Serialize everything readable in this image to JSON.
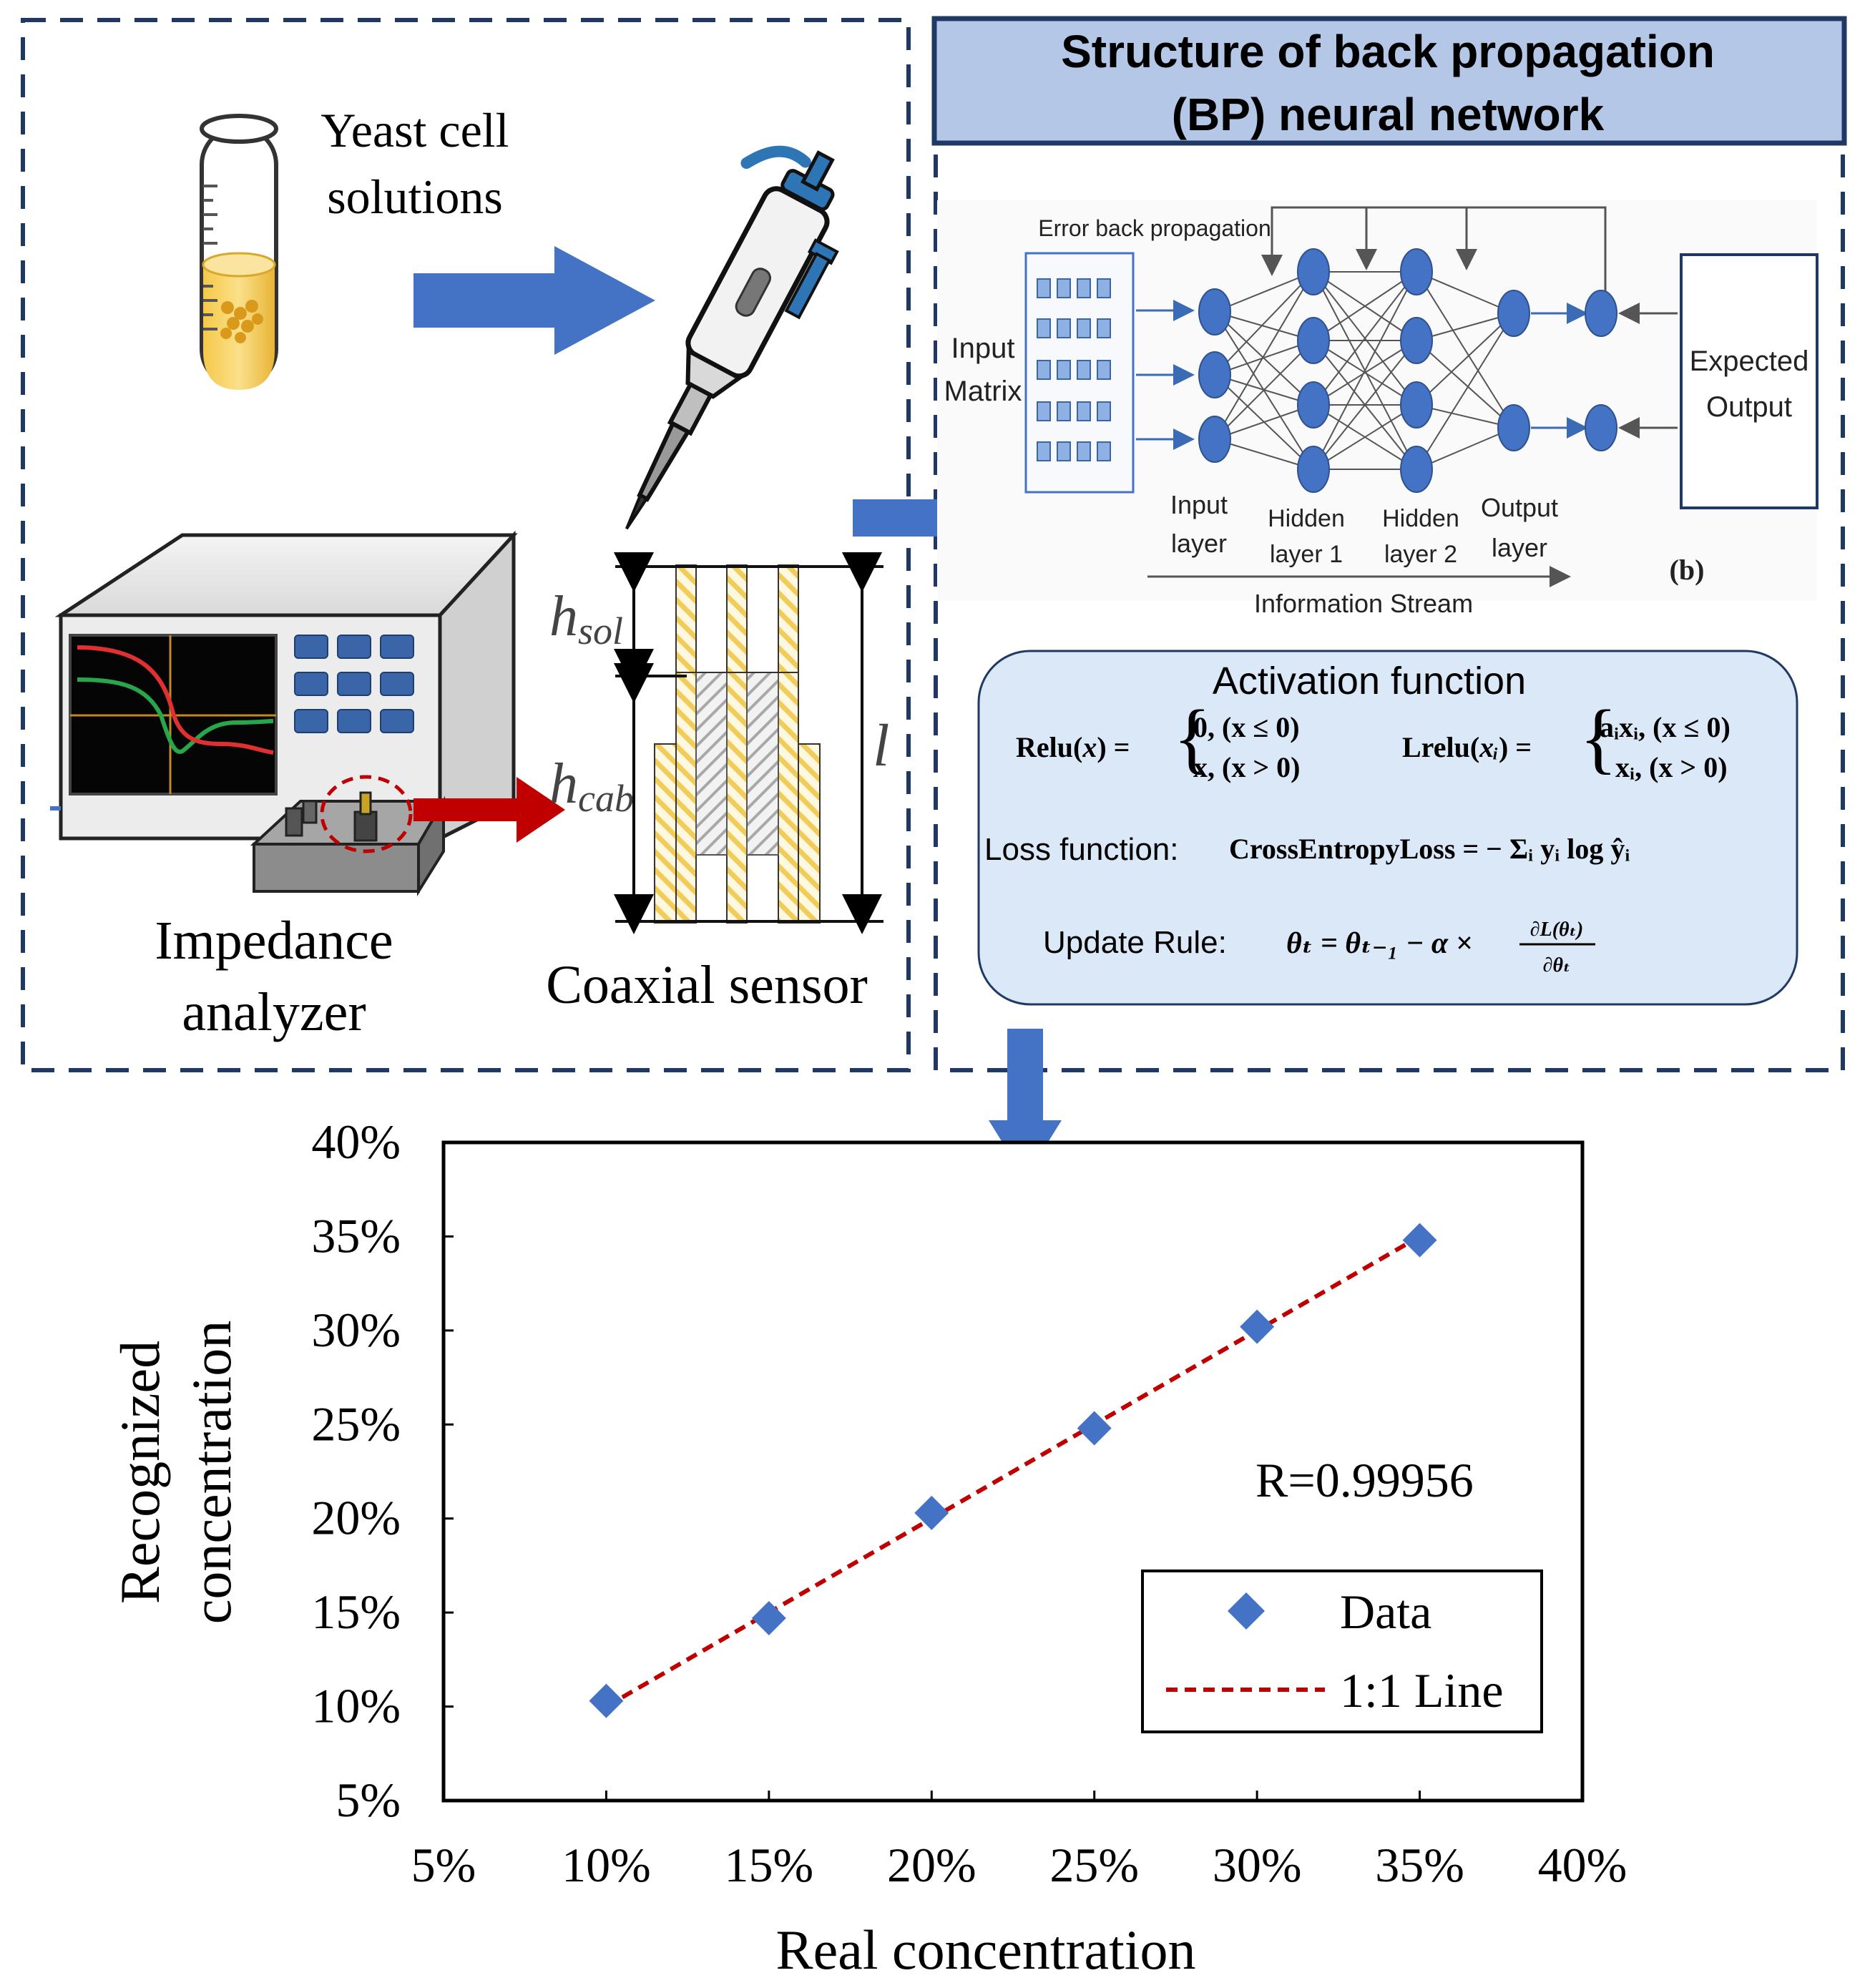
{
  "sample_prep": {
    "tube_label_line1": "Yeast cell",
    "tube_label_line2": "solutions",
    "analyzer_label_line1": "Impedance",
    "analyzer_label_line2": "analyzer",
    "sensor_label": "Coaxial sensor",
    "sensor_dims": {
      "h_sol": "sol",
      "h_cab": "cab",
      "l": "l",
      "h": "h"
    }
  },
  "bp_network": {
    "title_line1": "Structure of back propagation",
    "title_line2": "(BP) neural network",
    "error_label": "Error back propagation",
    "input_matrix_line1": "Input",
    "input_matrix_line2": "Matrix",
    "expected_line1": "Expected",
    "expected_line2": "Output",
    "layers": [
      {
        "line1": "Input",
        "line2": "layer"
      },
      {
        "line1": "Hidden",
        "line2": "layer 1"
      },
      {
        "line1": "Hidden",
        "line2": "layer 2"
      },
      {
        "line1": "Output",
        "line2": "layer"
      }
    ],
    "stream_label": "Information Stream",
    "panel_tag": "(b)"
  },
  "formulas": {
    "activation_title": "Activation function",
    "relu_name": "Relu",
    "relu_case1": "0, (x ≤ 0)",
    "relu_case2": "x, (x > 0)",
    "lrelu_name": "Lrelu",
    "lrelu_case1": "aᵢxᵢ, (x ≤ 0)",
    "lrelu_case2": "xᵢ, (x > 0)",
    "loss_label": "Loss function:",
    "loss_formula": "CrossEntropyLoss = − Σᵢ yᵢ log ŷᵢ",
    "update_label": "Update Rule:",
    "update_formula": "θₜ = θₜ₋₁ − α ×",
    "update_num": "∂L(θₜ)",
    "update_den": "∂θₜ"
  },
  "chart_data": {
    "type": "scatter",
    "xlabel": "Real concentration",
    "ylabel_line1": "Recognized",
    "ylabel_line2": "concentration",
    "xlim": [
      5,
      40
    ],
    "ylim": [
      5,
      40
    ],
    "x_ticks": [
      "5%",
      "10%",
      "15%",
      "20%",
      "25%",
      "30%",
      "35%",
      "40%"
    ],
    "y_ticks": [
      "5%",
      "10%",
      "15%",
      "20%",
      "25%",
      "30%",
      "35%",
      "40%"
    ],
    "tick_step": 5,
    "series": [
      {
        "name": "Data",
        "kind": "marker",
        "marker": "diamond",
        "color": "#4472c4",
        "x": [
          10,
          15,
          20,
          25,
          30,
          35
        ],
        "y": [
          10.3,
          14.7,
          20.3,
          24.8,
          30.2,
          34.8
        ]
      },
      {
        "name": "1:1 Line",
        "kind": "line",
        "style": "dashed",
        "color": "#c00000",
        "x": [
          10,
          35
        ],
        "y": [
          10,
          35
        ]
      }
    ],
    "annotation": "R=0.99956",
    "legend_position": "bottom-right"
  },
  "colors": {
    "frame": "#1f3864",
    "arrow_blue": "#4472c4",
    "arrow_red": "#c00000",
    "node_blue": "#4472c4",
    "title_fill": "#b4c7e7",
    "formula_fill": "#dae8f7",
    "sensor_yellow": "#f5d36b"
  }
}
